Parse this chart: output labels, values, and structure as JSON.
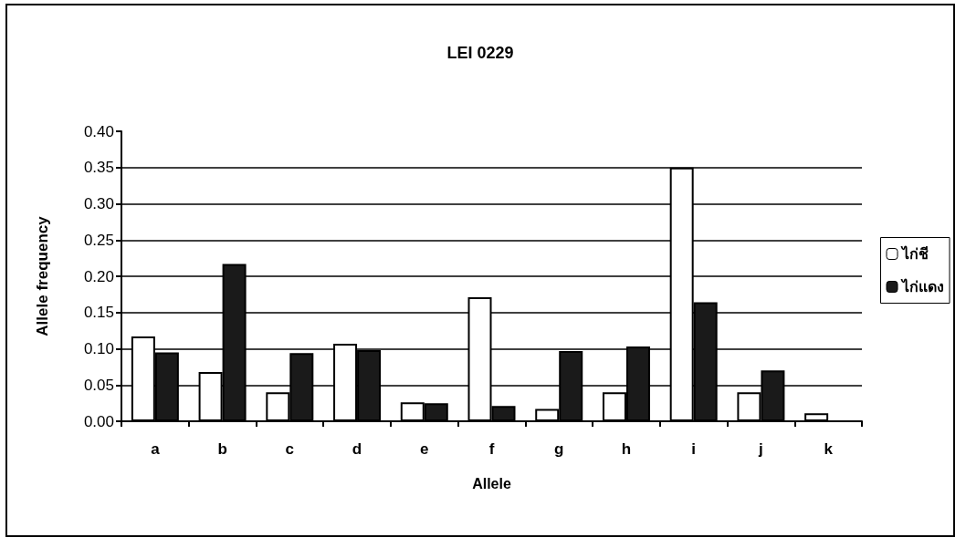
{
  "chart_data": {
    "type": "bar",
    "title": "LEI 0229",
    "xlabel": "Allele",
    "ylabel": "Allele frequency",
    "categories": [
      "a",
      "b",
      "c",
      "d",
      "e",
      "f",
      "g",
      "h",
      "i",
      "j",
      "k"
    ],
    "series": [
      {
        "name": "ไก่ชี",
        "color": "#ffffff",
        "values": [
          0.117,
          0.068,
          0.04,
          0.107,
          0.026,
          0.171,
          0.017,
          0.04,
          0.35,
          0.04,
          0.011
        ]
      },
      {
        "name": "ไก่แดง",
        "color": "#1a1a1a",
        "values": [
          0.095,
          0.217,
          0.094,
          0.098,
          0.025,
          0.021,
          0.097,
          0.103,
          0.164,
          0.07,
          null
        ]
      }
    ],
    "ylim": [
      0,
      0.4
    ],
    "yticks": [
      {
        "value": 0,
        "label": "0.00"
      },
      0.05,
      {
        "value": 0.1,
        "label": "0.10"
      },
      0.15,
      {
        "value": 0.2,
        "label": "0.20"
      },
      0.25,
      {
        "value": 0.3,
        "label": "0.30"
      },
      0.35,
      {
        "value": 0.4,
        "label": "0.40"
      }
    ],
    "grid": "y",
    "legend": "right"
  }
}
